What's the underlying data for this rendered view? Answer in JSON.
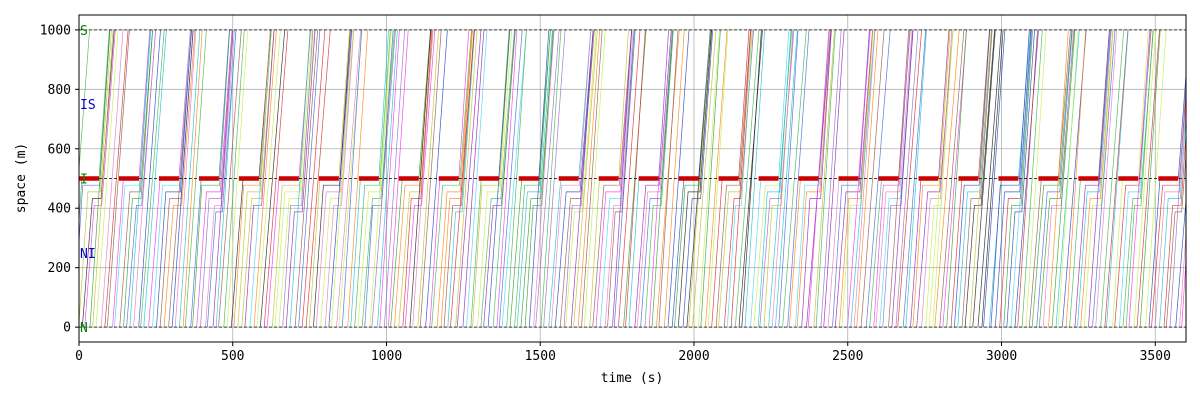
{
  "chart_data": {
    "type": "line",
    "title": "",
    "xlabel": "time (s)",
    "ylabel": "space (m)",
    "xlim": [
      0,
      3600
    ],
    "ylim": [
      -50,
      1050
    ],
    "x_ticks": [
      0,
      500,
      1000,
      1500,
      2000,
      2500,
      3000,
      3500
    ],
    "y_ticks": [
      0,
      200,
      400,
      600,
      800,
      1000
    ],
    "grid": true,
    "reference_lines": [
      0,
      500,
      1000
    ],
    "zone_labels": [
      {
        "text": "S",
        "y": 1000,
        "color": "#008000"
      },
      {
        "text": "IS",
        "y": 750,
        "color": "#0000cc"
      },
      {
        "text": "I",
        "y": 500,
        "color": "#008000"
      },
      {
        "text": "NI",
        "y": 250,
        "color": "#0000cc"
      },
      {
        "text": "N",
        "y": 0,
        "color": "#008000"
      }
    ],
    "signal": {
      "position": 500,
      "cycle": 130,
      "red_start": 0,
      "red_duration": 65,
      "red_color": "#cc0000"
    },
    "trajectories": {
      "start_time_min": 0,
      "start_time_max": 3600,
      "count": 300,
      "free_speed_mps": 14,
      "queue_spacing_m": 25,
      "discharge_headway_s": 2.2,
      "palette": [
        "#1f3fbf",
        "#2ca02c",
        "#d62728",
        "#9467bd",
        "#17becf",
        "#bcbd22",
        "#e377c2",
        "#ff7f0e",
        "#8c564b",
        "#1a1a1a",
        "#3cb44b",
        "#4363d8",
        "#f032e6",
        "#42d4f4",
        "#bfef45",
        "#911eb4"
      ]
    }
  }
}
